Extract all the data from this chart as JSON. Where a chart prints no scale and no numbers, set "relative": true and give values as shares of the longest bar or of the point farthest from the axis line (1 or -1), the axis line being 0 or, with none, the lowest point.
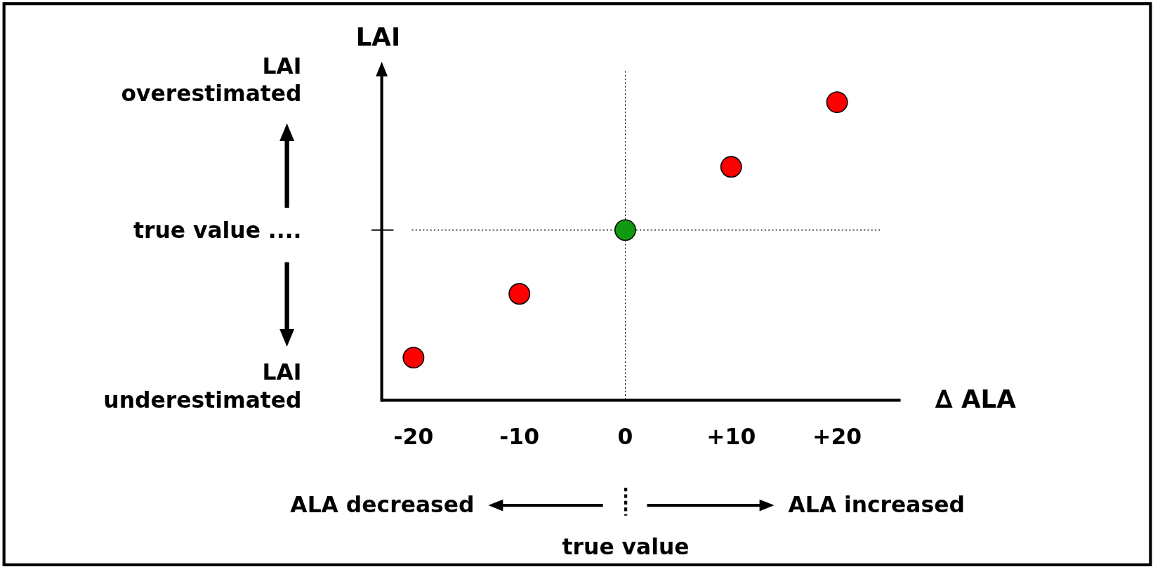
{
  "chart_data": {
    "type": "scatter",
    "relative": true,
    "xlabel": "∆ ALA",
    "ylabel": "LAI",
    "x": [
      -20,
      -10,
      0,
      10,
      20
    ],
    "values": [
      0.143,
      0.357,
      0.571,
      0.783,
      1
    ],
    "colors": [
      "#ff0000",
      "#ff0000",
      "#119911",
      "#ff0000",
      "#ff0000"
    ],
    "marker": "circle",
    "xlim": [
      -23,
      26
    ],
    "xticks": [
      -20,
      -10,
      0,
      {
        "value": 10,
        "label": "+10"
      },
      {
        "value": 20,
        "label": "+20"
      }
    ],
    "ref_lines": [
      {
        "axis": "x",
        "value": 0,
        "line_style": "dotted",
        "color": "#000000"
      },
      {
        "axis": "y",
        "value": 0.571,
        "label": "true value ....",
        "line_style": "dotted",
        "color": "#000000"
      }
    ],
    "annotations": [
      "LAI overestimated",
      "LAI underestimated",
      "ALA decreased",
      "ALA increased",
      "true value"
    ]
  }
}
